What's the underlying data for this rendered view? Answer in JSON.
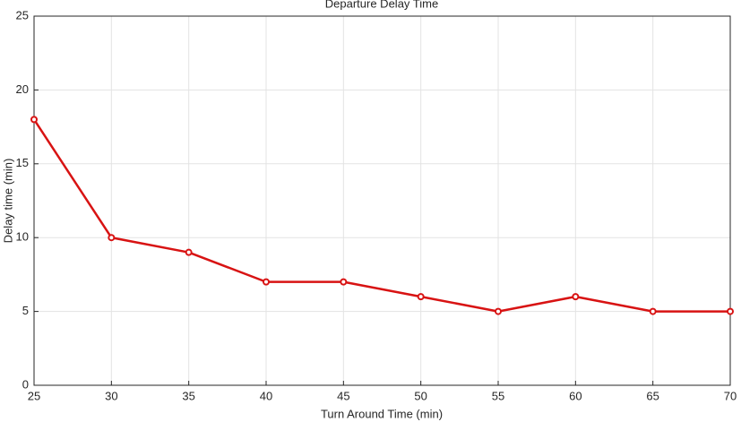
{
  "chart_data": {
    "type": "line",
    "title": "Departure Delay Time",
    "x_label": "Turn Around Time (min)",
    "y_label": "Delay time (min)",
    "x": [
      25,
      30,
      35,
      40,
      45,
      50,
      55,
      60,
      65,
      70
    ],
    "series": [
      {
        "color": "#d81313",
        "values": [
          18,
          10,
          9,
          7,
          7,
          6,
          5,
          6,
          5,
          5
        ]
      }
    ],
    "xlim": [
      25,
      70
    ],
    "xticks": [
      25,
      30,
      35,
      40,
      45,
      50,
      55,
      60,
      65,
      70
    ],
    "ylim": [
      0,
      25
    ],
    "yticks": [
      0,
      5,
      10,
      15,
      20,
      25
    ],
    "grid": true,
    "markers": true
  }
}
